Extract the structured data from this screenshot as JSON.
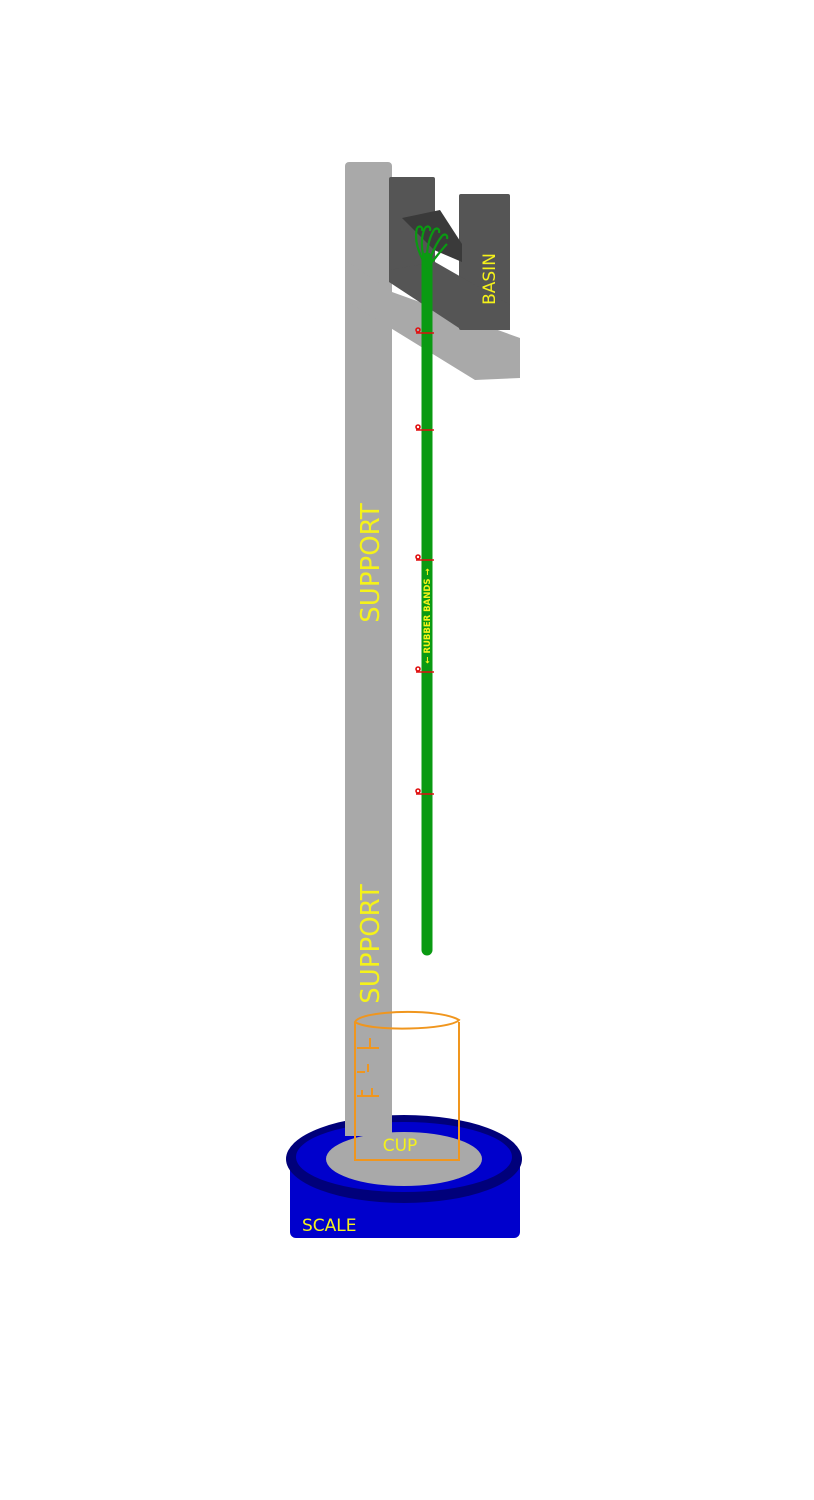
{
  "labels": {
    "support_upper": "SUPPORT",
    "support_lower": "SUPPORT",
    "basin": "BASIN",
    "rubber_bands": "← RUBBER BANDS →",
    "cup": "CUP",
    "scale": "SCALE"
  },
  "colors": {
    "support": "#a9a9a9",
    "basin": "#555555",
    "stem": "#0a9a12",
    "rubber_band": "#e01010",
    "cup": "#f0961e",
    "scale": "#0000cc",
    "label": "#f5f21a"
  }
}
